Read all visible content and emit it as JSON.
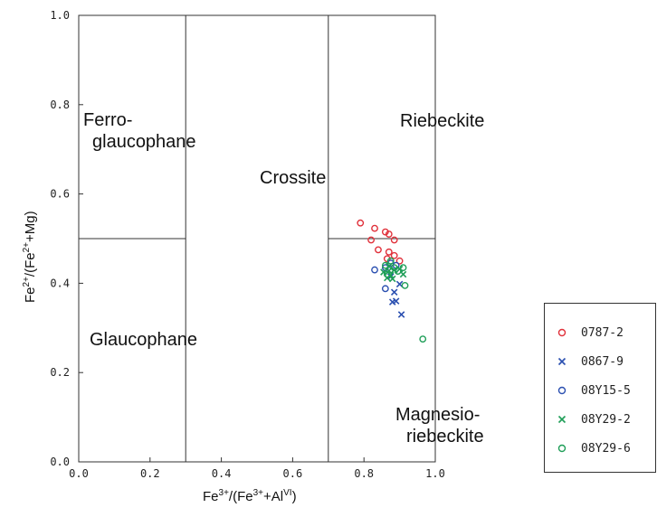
{
  "chart_data": {
    "type": "scatter",
    "xlim": [
      0,
      1
    ],
    "ylim": [
      0,
      1
    ],
    "x_ticks": [
      "0.0",
      "0.2",
      "0.4",
      "0.6",
      "0.8",
      "1.0"
    ],
    "y_ticks": [
      "0.0",
      "0.2",
      "0.4",
      "0.6",
      "0.8",
      "1.0"
    ],
    "grid": false,
    "legend_position": "right",
    "fields": {
      "ferro_line1": "Ferro-",
      "ferro_line2": "glaucophane",
      "crossite": "Crossite",
      "riebeckite": "Riebeckite",
      "glaucophane": "Glaucophane",
      "magnesio_line1": "Magnesio-",
      "magnesio_line2": "riebeckite"
    },
    "boundaries": {
      "verticals_x": [
        0.3,
        0.7
      ],
      "horizontal_y": 0.5
    },
    "xlabel": {
      "base1": "Fe",
      "sup1": "3+",
      "mid": "/(Fe",
      "sup2": "3+",
      "mid2": "+Al",
      "sup3": "VI",
      "end": ")"
    },
    "ylabel": {
      "base1": "Fe",
      "sup1": "2+",
      "mid": "/(Fe",
      "sup2": "2+",
      "end": "+Mg)"
    },
    "series": [
      {
        "name": "0787-2",
        "marker": "circle",
        "color": "#e0303a",
        "points": [
          [
            0.79,
            0.535
          ],
          [
            0.83,
            0.523
          ],
          [
            0.86,
            0.515
          ],
          [
            0.87,
            0.51
          ],
          [
            0.82,
            0.497
          ],
          [
            0.885,
            0.497
          ],
          [
            0.84,
            0.475
          ],
          [
            0.87,
            0.47
          ],
          [
            0.885,
            0.462
          ],
          [
            0.9,
            0.45
          ],
          [
            0.865,
            0.455
          ]
        ]
      },
      {
        "name": "0867-9",
        "marker": "x",
        "color": "#2a4fb0",
        "points": [
          [
            0.875,
            0.415
          ],
          [
            0.9,
            0.398
          ],
          [
            0.885,
            0.38
          ],
          [
            0.89,
            0.36
          ],
          [
            0.88,
            0.358
          ],
          [
            0.905,
            0.33
          ]
        ]
      },
      {
        "name": "08Y15-5",
        "marker": "circle",
        "color": "#2a4fb0",
        "points": [
          [
            0.83,
            0.43
          ],
          [
            0.86,
            0.435
          ],
          [
            0.875,
            0.445
          ],
          [
            0.89,
            0.44
          ],
          [
            0.86,
            0.388
          ]
        ]
      },
      {
        "name": "08Y29-2",
        "marker": "x",
        "color": "#1f9e58",
        "points": [
          [
            0.855,
            0.425
          ],
          [
            0.87,
            0.438
          ],
          [
            0.875,
            0.418
          ],
          [
            0.865,
            0.412
          ],
          [
            0.885,
            0.43
          ],
          [
            0.9,
            0.432
          ],
          [
            0.91,
            0.42
          ],
          [
            0.88,
            0.41
          ],
          [
            0.87,
            0.428
          ]
        ]
      },
      {
        "name": "08Y29-6",
        "marker": "circle",
        "color": "#1f9e58",
        "points": [
          [
            0.86,
            0.44
          ],
          [
            0.875,
            0.45
          ],
          [
            0.885,
            0.435
          ],
          [
            0.895,
            0.427
          ],
          [
            0.91,
            0.435
          ],
          [
            0.915,
            0.395
          ],
          [
            0.865,
            0.42
          ],
          [
            0.965,
            0.275
          ]
        ]
      }
    ]
  }
}
